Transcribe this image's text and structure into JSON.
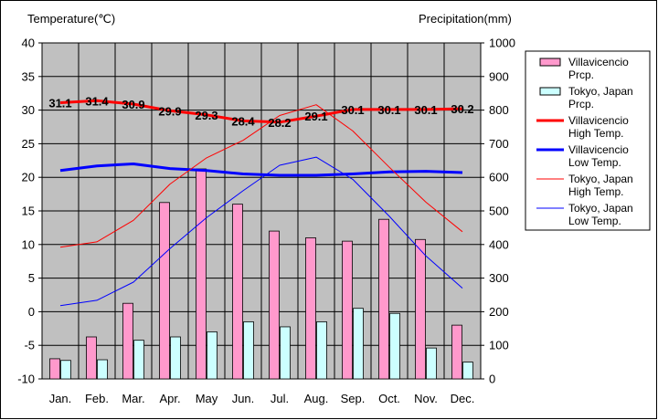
{
  "chart_data": {
    "type": "bar",
    "categories": [
      "Jan.",
      "Feb.",
      "Mar.",
      "Apr.",
      "May",
      "Jun.",
      "Jul.",
      "Aug.",
      "Sep.",
      "Oct.",
      "Nov.",
      "Dec."
    ],
    "y_left": {
      "label": "Temperature(℃)",
      "range": [
        -10,
        40
      ],
      "ticks": [
        40,
        35,
        30,
        25,
        20,
        15,
        10,
        5,
        0,
        -5,
        -10
      ]
    },
    "y_right": {
      "label": "Precipitation(mm)",
      "range": [
        0,
        1000
      ],
      "ticks": [
        1000,
        900,
        800,
        700,
        600,
        500,
        400,
        300,
        200,
        100,
        0
      ]
    },
    "grid": true,
    "legend_position": "right",
    "bar_series": [
      {
        "name": "Villavicencio Prcp.",
        "legend_lines": [
          "Villavicencio",
          "Prcp."
        ],
        "color": "#ff99cc",
        "values": [
          60,
          125,
          225,
          525,
          625,
          520,
          440,
          420,
          410,
          475,
          415,
          160
        ]
      },
      {
        "name": "Tokyo, Japan Prcp.",
        "legend_lines": [
          "Tokyo, Japan",
          "Prcp."
        ],
        "color": "#ccffff",
        "values": [
          55,
          57,
          115,
          125,
          140,
          170,
          155,
          170,
          210,
          195,
          92,
          50
        ]
      }
    ],
    "line_series": [
      {
        "name": "Villavicencio High Temp.",
        "legend_lines": [
          "Villavicencio",
          "High Temp."
        ],
        "color": "#ff0000",
        "width": 3,
        "values": [
          31.1,
          31.4,
          30.9,
          29.9,
          29.3,
          28.4,
          28.2,
          29.1,
          30.1,
          30.1,
          30.1,
          30.2
        ],
        "labels": [
          "31.1",
          "31.4",
          "30.9",
          "29.9",
          "29.3",
          "28.4",
          "28.2",
          "29.1",
          "30.1",
          "30.1",
          "30.1",
          "30.2"
        ]
      },
      {
        "name": "Villavicencio Low Temp.",
        "legend_lines": [
          "Villavicencio",
          "Low Temp."
        ],
        "color": "#0000ff",
        "width": 3,
        "values": [
          21.0,
          21.7,
          22.0,
          21.3,
          21.0,
          20.5,
          20.3,
          20.3,
          20.5,
          20.8,
          20.9,
          20.7
        ]
      },
      {
        "name": "Tokyo, Japan High Temp.",
        "legend_lines": [
          "Tokyo, Japan",
          "High Temp."
        ],
        "color": "#ff0000",
        "width": 1,
        "values": [
          9.6,
          10.4,
          13.6,
          19.0,
          22.9,
          25.5,
          29.2,
          30.8,
          26.9,
          21.5,
          16.3,
          11.9
        ]
      },
      {
        "name": "Tokyo, Japan Low Temp.",
        "legend_lines": [
          "Tokyo, Japan",
          "Low Temp."
        ],
        "color": "#0000ff",
        "width": 1,
        "values": [
          0.9,
          1.7,
          4.4,
          9.4,
          14.0,
          18.0,
          21.8,
          23.0,
          19.7,
          14.2,
          8.3,
          3.5
        ]
      }
    ]
  }
}
